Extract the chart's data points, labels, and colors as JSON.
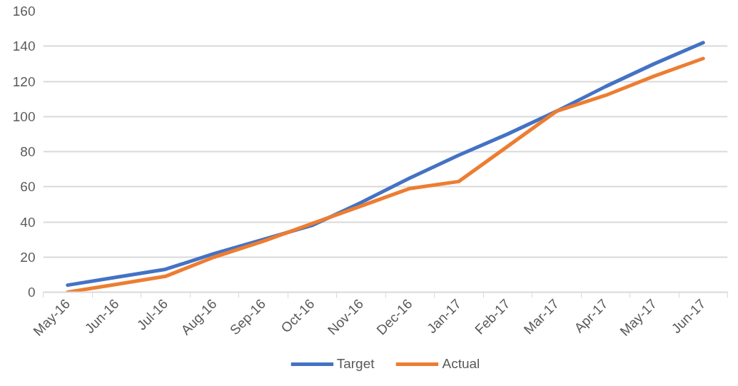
{
  "chart_data": {
    "type": "line",
    "categories": [
      "May-16",
      "Jun-16",
      "Jul-16",
      "Aug-16",
      "Sep-16",
      "Oct-16",
      "Nov-16",
      "Dec-16",
      "Jan-17",
      "Feb-17",
      "Mar-17",
      "Apr-17",
      "May-17",
      "Jun-17"
    ],
    "series": [
      {
        "name": "Target",
        "color": "#4472c4",
        "values": [
          4,
          8.5,
          13,
          22,
          30,
          38,
          51,
          65,
          78,
          90,
          103,
          117,
          130,
          142
        ]
      },
      {
        "name": "Actual",
        "color": "#ed7d31",
        "values": [
          0,
          4.5,
          9,
          20,
          29,
          39,
          49,
          59,
          63,
          83,
          103,
          112,
          123,
          133
        ]
      }
    ],
    "ylim": [
      0,
      160
    ],
    "yticks": [
      0,
      20,
      40,
      60,
      80,
      100,
      120,
      140,
      160
    ],
    "grid": "y",
    "legend": "bottom",
    "marker": "none",
    "line_style": "solid"
  }
}
